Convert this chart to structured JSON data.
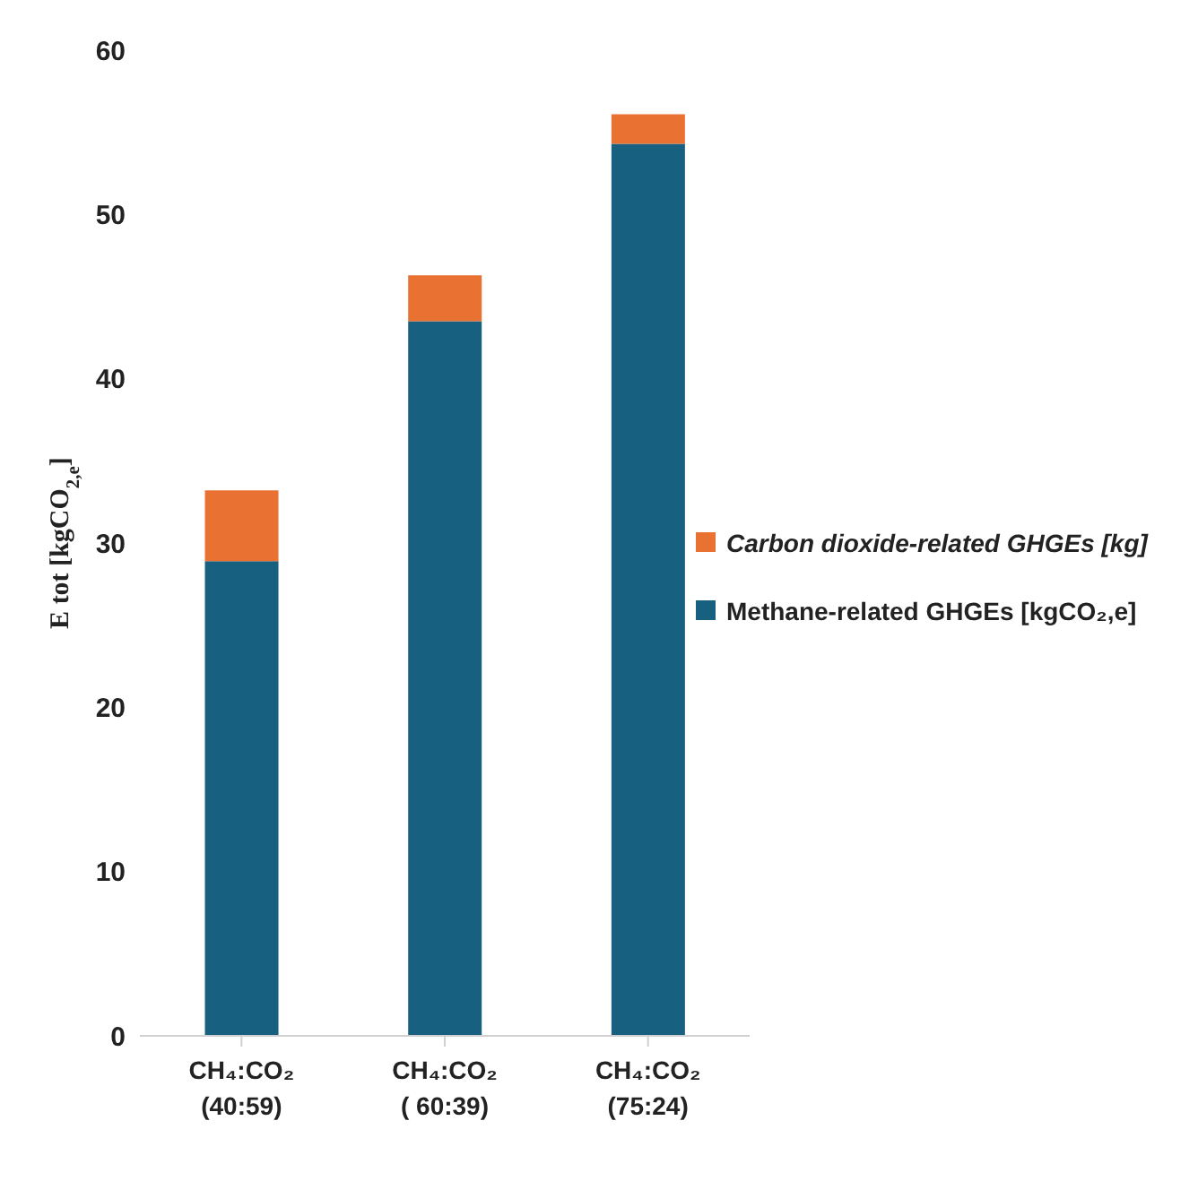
{
  "chart_data": {
    "type": "bar",
    "stacked": true,
    "ylabel": "E tot    [kgCO$_{2,e}$]",
    "categories": [
      "CH₄:CO₂\n(40:59)",
      "CH₄:CO₂\n( 60:39)",
      "CH₄:CO₂\n(75:24)"
    ],
    "series": [
      {
        "name": "Methane-related GHGEs  [kgCO₂,e]",
        "color": "#17607f",
        "values": [
          28.9,
          43.5,
          54.3
        ]
      },
      {
        "name": "Carbon dioxide-related GHGEs [kg]",
        "color": "#e97132",
        "values": [
          4.3,
          2.8,
          1.8
        ]
      }
    ],
    "ylim": [
      0,
      60
    ],
    "yticks": [
      0,
      10,
      20,
      30,
      40,
      50,
      60
    ],
    "grid": false,
    "legend": "right"
  }
}
